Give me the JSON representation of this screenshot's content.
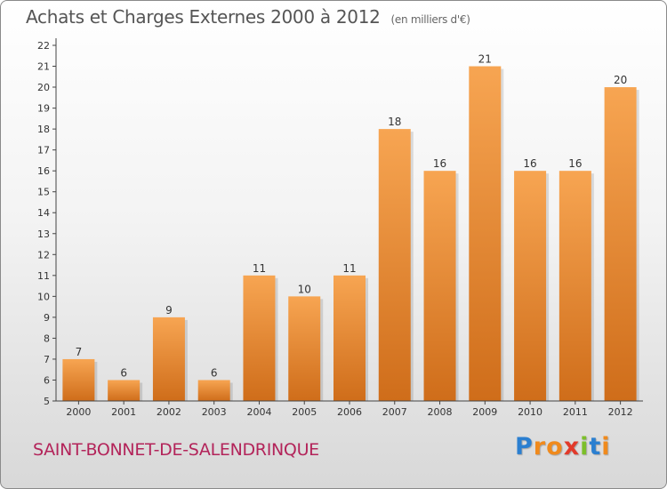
{
  "chart_data": {
    "type": "bar",
    "title": "Achats et Charges Externes 2000 à 2012",
    "subtitle": "(en milliers d'€)",
    "categories": [
      "2000",
      "2001",
      "2002",
      "2003",
      "2004",
      "2005",
      "2006",
      "2007",
      "2008",
      "2009",
      "2010",
      "2011",
      "2012"
    ],
    "values": [
      7,
      6,
      9,
      6,
      11,
      10,
      11,
      18,
      16,
      21,
      16,
      16,
      20
    ],
    "ylim": [
      5,
      22
    ],
    "yticks": [
      5,
      6,
      7,
      8,
      9,
      10,
      11,
      12,
      13,
      14,
      15,
      16,
      17,
      18,
      19,
      20,
      21,
      22
    ],
    "xlabel": "",
    "ylabel": "",
    "grid": false,
    "bar_color_top": "#f7a552",
    "bar_color_bottom": "#cf6d1a"
  },
  "commune": "SAINT-BONNET-DE-SALENDRINQUE",
  "logo": {
    "letters": [
      "P",
      "r",
      "o",
      "x",
      "i",
      "t",
      "i"
    ],
    "colors": [
      "#2b7fd0",
      "#f08a1c",
      "#f08a1c",
      "#e23a2a",
      "#7cbf2a",
      "#2b7fd0",
      "#f08a1c"
    ]
  }
}
